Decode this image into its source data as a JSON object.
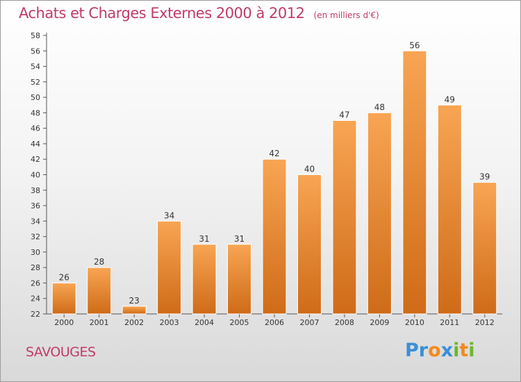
{
  "header": {
    "title": "Achats et Charges Externes 2000 à 2012",
    "unit": "(en milliers d'€)"
  },
  "footer": {
    "commune": "SAVOUGES",
    "logo_text": "Proxiti"
  },
  "colors": {
    "bar_light": "#f8a553",
    "bar_dark": "#cf6b18",
    "title": "#c03a6a",
    "logo": [
      "#3a8fd6",
      "#3a8fd6",
      "#f28a1c",
      "#3a8fd6",
      "#6bb82b",
      "#f28a1c",
      "#6bb82b"
    ]
  },
  "chart_data": {
    "type": "bar",
    "title": "Achats et Charges Externes 2000 à 2012",
    "subtitle": "(en milliers d'€)",
    "xlabel": "",
    "ylabel": "",
    "categories": [
      "2000",
      "2001",
      "2002",
      "2003",
      "2004",
      "2005",
      "2006",
      "2007",
      "2008",
      "2009",
      "2010",
      "2011",
      "2012"
    ],
    "values": [
      26,
      28,
      23,
      34,
      31,
      31,
      42,
      40,
      47,
      48,
      56,
      49,
      39
    ],
    "ylim": [
      22,
      58
    ],
    "yticks": [
      22,
      24,
      26,
      28,
      30,
      32,
      34,
      36,
      38,
      40,
      42,
      44,
      46,
      48,
      50,
      52,
      54,
      56,
      58
    ],
    "grid": false,
    "legend": "none",
    "data_labels": true
  }
}
